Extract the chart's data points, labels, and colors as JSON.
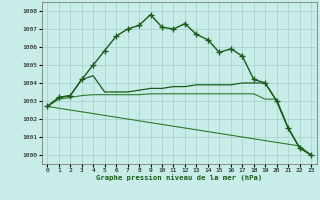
{
  "title": "Graphe pression niveau de la mer (hPa)",
  "background_color": "#c8ece8",
  "grid_color": "#a8d4cc",
  "xlim": [
    -0.5,
    23.5
  ],
  "ylim": [
    999.5,
    1008.5
  ],
  "yticks": [
    1000,
    1001,
    1002,
    1003,
    1004,
    1005,
    1006,
    1007,
    1008
  ],
  "xticks": [
    0,
    1,
    2,
    3,
    4,
    5,
    6,
    7,
    8,
    9,
    10,
    11,
    12,
    13,
    14,
    15,
    16,
    17,
    18,
    19,
    20,
    21,
    22,
    23
  ],
  "series": [
    {
      "x": [
        0,
        1,
        2,
        3,
        4,
        5,
        6,
        7,
        8,
        9,
        10,
        11,
        12,
        13,
        14,
        15,
        16,
        17,
        18,
        19,
        20,
        21,
        22,
        23
      ],
      "y": [
        1002.7,
        1003.2,
        1003.3,
        1004.2,
        1005.0,
        1005.8,
        1006.6,
        1007.0,
        1007.2,
        1007.8,
        1007.1,
        1007.0,
        1007.3,
        1006.7,
        1006.4,
        1005.7,
        1005.9,
        1005.5,
        1004.2,
        1004.0,
        1003.0,
        1001.5,
        1000.4,
        1000.0
      ],
      "color": "#1a5c1a",
      "marker": "+",
      "linewidth": 1.0,
      "markersize": 4,
      "markeredgewidth": 1.0
    },
    {
      "x": [
        0,
        1,
        2,
        3,
        4,
        5,
        6,
        7,
        8,
        9,
        10,
        11,
        12,
        13,
        14,
        15,
        16,
        17,
        18,
        19,
        20,
        21,
        22,
        23
      ],
      "y": [
        1002.7,
        1003.2,
        1003.3,
        1004.2,
        1004.4,
        1003.5,
        1003.5,
        1003.5,
        1003.6,
        1003.7,
        1003.7,
        1003.8,
        1003.8,
        1003.9,
        1003.9,
        1003.9,
        1003.9,
        1004.0,
        1004.0,
        1004.0,
        1003.0,
        1001.5,
        1000.4,
        1000.0
      ],
      "color": "#1a5c1a",
      "marker": null,
      "linewidth": 0.9,
      "markersize": 0,
      "markeredgewidth": 0
    },
    {
      "x": [
        0,
        1,
        2,
        3,
        4,
        5,
        6,
        7,
        8,
        9,
        10,
        11,
        12,
        13,
        14,
        15,
        16,
        17,
        18,
        19,
        20,
        21,
        22,
        23
      ],
      "y": [
        1002.7,
        1003.1,
        1003.2,
        1003.3,
        1003.35,
        1003.35,
        1003.35,
        1003.35,
        1003.35,
        1003.4,
        1003.4,
        1003.4,
        1003.4,
        1003.4,
        1003.4,
        1003.4,
        1003.4,
        1003.4,
        1003.4,
        1003.1,
        1003.1,
        1001.5,
        1000.4,
        1000.0
      ],
      "color": "#2d7a2d",
      "marker": null,
      "linewidth": 0.8,
      "markersize": 0,
      "markeredgewidth": 0
    },
    {
      "x": [
        0,
        1,
        2,
        3,
        4,
        5,
        6,
        7,
        8,
        9,
        10,
        11,
        12,
        13,
        14,
        15,
        16,
        17,
        18,
        19,
        20,
        21,
        22,
        23
      ],
      "y": [
        1002.7,
        1002.6,
        1002.5,
        1002.4,
        1002.3,
        1002.2,
        1002.1,
        1002.0,
        1001.9,
        1001.8,
        1001.7,
        1001.6,
        1001.5,
        1001.4,
        1001.3,
        1001.2,
        1001.1,
        1001.0,
        1000.9,
        1000.8,
        1000.7,
        1000.6,
        1000.5,
        1000.0
      ],
      "color": "#2d7a2d",
      "marker": null,
      "linewidth": 0.8,
      "markersize": 0,
      "markeredgewidth": 0
    }
  ]
}
